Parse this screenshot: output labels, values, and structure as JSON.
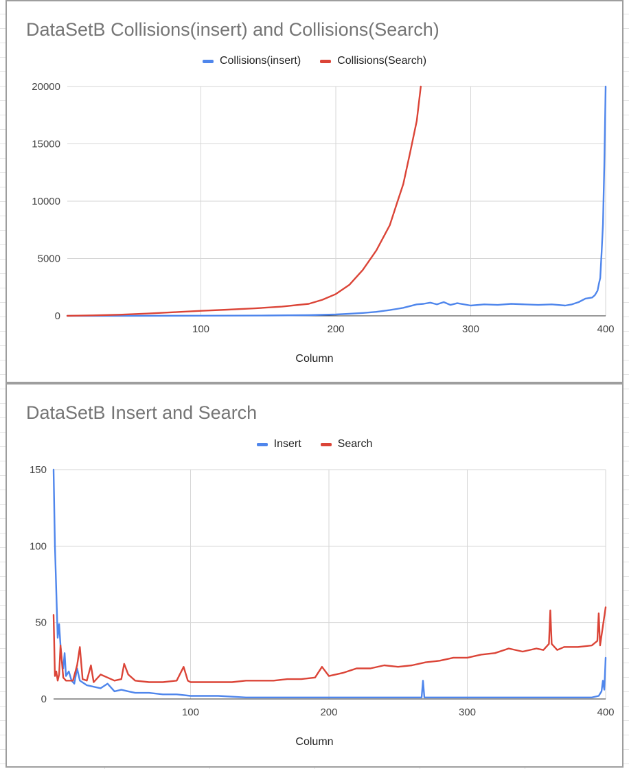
{
  "chart_data": [
    {
      "type": "line",
      "title": "DataSetB Collisions(insert) and Collisions(Search)",
      "xlabel": "Column",
      "ylabel": "",
      "xlim": [
        1,
        400
      ],
      "ylim": [
        0,
        20000
      ],
      "x_ticks": [
        100,
        200,
        300,
        400
      ],
      "y_ticks": [
        0,
        5000,
        10000,
        15000,
        20000
      ],
      "grid": true,
      "legend_position": "top",
      "series": [
        {
          "name": "Collisions(insert)",
          "color": "#4f86ec",
          "x": [
            1,
            50,
            100,
            150,
            180,
            200,
            210,
            220,
            230,
            240,
            245,
            250,
            255,
            260,
            265,
            270,
            275,
            280,
            285,
            290,
            300,
            310,
            320,
            330,
            340,
            350,
            360,
            370,
            375,
            380,
            385,
            390,
            392,
            394,
            395,
            396,
            397,
            398,
            399,
            400
          ],
          "values": [
            0,
            0,
            10,
            30,
            60,
            120,
            180,
            250,
            350,
            500,
            600,
            700,
            850,
            1000,
            1050,
            1150,
            1000,
            1200,
            950,
            1100,
            900,
            1000,
            950,
            1050,
            1000,
            950,
            1000,
            900,
            1000,
            1200,
            1500,
            1600,
            1800,
            2200,
            2800,
            3300,
            5500,
            8000,
            13000,
            20000
          ]
        },
        {
          "name": "Collisions(Search)",
          "color": "#db4437",
          "x": [
            1,
            20,
            40,
            60,
            80,
            100,
            120,
            140,
            160,
            180,
            190,
            200,
            210,
            220,
            230,
            240,
            245,
            250,
            255,
            260,
            263
          ],
          "values": [
            0,
            40,
            100,
            200,
            320,
            440,
            540,
            650,
            800,
            1050,
            1400,
            1900,
            2700,
            4000,
            5700,
            7900,
            9700,
            11500,
            14200,
            17000,
            20000
          ]
        }
      ]
    },
    {
      "type": "line",
      "title": "DataSetB Insert and Search",
      "xlabel": "Column",
      "ylabel": "",
      "xlim": [
        1,
        400
      ],
      "ylim": [
        0,
        150
      ],
      "x_ticks": [
        100,
        200,
        300,
        400
      ],
      "y_ticks": [
        0,
        50,
        100,
        150
      ],
      "grid": true,
      "legend_position": "top",
      "series": [
        {
          "name": "Insert",
          "color": "#4f86ec",
          "x": [
            1,
            2,
            3,
            4,
            5,
            6,
            7,
            8,
            9,
            10,
            12,
            14,
            16,
            18,
            20,
            25,
            30,
            35,
            40,
            45,
            50,
            55,
            60,
            70,
            80,
            90,
            100,
            120,
            140,
            160,
            180,
            200,
            220,
            240,
            260,
            267,
            268,
            269,
            270,
            280,
            300,
            320,
            340,
            360,
            380,
            390,
            395,
            397,
            398,
            399,
            400
          ],
          "values": [
            150,
            100,
            70,
            40,
            49,
            35,
            25,
            20,
            30,
            15,
            18,
            12,
            10,
            20,
            12,
            9,
            8,
            7,
            10,
            5,
            6,
            5,
            4,
            4,
            3,
            3,
            2,
            2,
            1,
            1,
            1,
            1,
            1,
            1,
            1,
            1,
            12,
            1,
            1,
            1,
            1,
            1,
            1,
            1,
            1,
            1,
            2,
            5,
            12,
            6,
            27
          ]
        },
        {
          "name": "Search",
          "color": "#db4437",
          "x": [
            1,
            2,
            3,
            4,
            5,
            6,
            8,
            10,
            12,
            15,
            18,
            20,
            22,
            25,
            28,
            30,
            35,
            40,
            45,
            50,
            52,
            55,
            60,
            70,
            80,
            90,
            95,
            98,
            100,
            110,
            120,
            130,
            140,
            150,
            160,
            170,
            180,
            190,
            195,
            200,
            210,
            220,
            230,
            240,
            250,
            260,
            270,
            280,
            290,
            300,
            310,
            320,
            330,
            340,
            350,
            355,
            359,
            360,
            361,
            365,
            370,
            380,
            390,
            394,
            395,
            396,
            400
          ],
          "values": [
            55,
            15,
            18,
            12,
            16,
            35,
            14,
            12,
            12,
            12,
            22,
            34,
            13,
            12,
            22,
            11,
            16,
            14,
            12,
            13,
            23,
            16,
            12,
            11,
            11,
            12,
            21,
            12,
            11,
            11,
            11,
            11,
            12,
            12,
            12,
            13,
            13,
            14,
            21,
            15,
            17,
            20,
            20,
            22,
            21,
            22,
            24,
            25,
            27,
            27,
            29,
            30,
            33,
            31,
            33,
            32,
            36,
            58,
            36,
            32,
            34,
            34,
            35,
            38,
            56,
            35,
            60
          ]
        }
      ]
    }
  ]
}
